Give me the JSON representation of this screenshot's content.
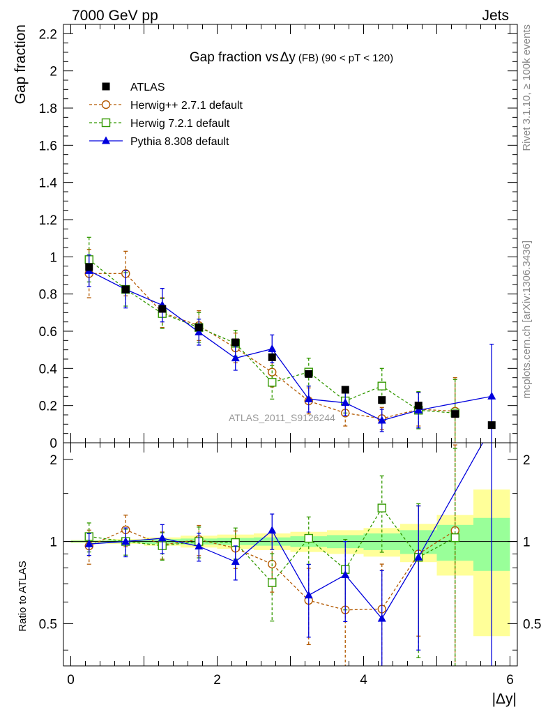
{
  "header": {
    "left": "7000 GeV pp",
    "right": "Jets"
  },
  "side_labels": {
    "rivet": "Rivet 3.1.10, ≥ 100k events",
    "mcplots": "mcplots.cern.ch [arXiv:1306.3436]"
  },
  "watermark": "ATLAS_2011_S9126244",
  "chart_data": {
    "type": "scatter",
    "title": {
      "main": "Gap fraction vs",
      "delta": "Δy",
      "fb": "(FB)",
      "range": "(90 < pT < 120)"
    },
    "xlabel": "|Δy|",
    "ylabel_top": "Gap fraction",
    "ylabel_bottom": "Ratio to ATLAS",
    "xlim": [
      -0.1,
      6.1
    ],
    "ylim_top": [
      0,
      2.25
    ],
    "ylim_bottom": [
      0.35,
      2.3
    ],
    "x_ticks": [
      "0",
      "2",
      "4",
      "6"
    ],
    "y_ticks_top": [
      "0",
      "0.2",
      "0.4",
      "0.6",
      "0.8",
      "1",
      "1.2",
      "1.4",
      "1.6",
      "1.8",
      "2",
      "2.2"
    ],
    "y_ticks_bottom": [
      "0.5",
      "1",
      "2"
    ],
    "legend": [
      {
        "label": "ATLAS",
        "color": "#000000",
        "marker": "square-filled"
      },
      {
        "label": "Herwig++ 2.7.1 default",
        "color": "#b35900",
        "marker": "circle-open"
      },
      {
        "label": "Herwig 7.2.1 default",
        "color": "#339900",
        "marker": "square-open"
      },
      {
        "label": "Pythia 8.308 default",
        "color": "#0000dd",
        "marker": "triangle-filled"
      }
    ],
    "x": [
      0.25,
      0.75,
      1.25,
      1.75,
      2.25,
      2.75,
      3.25,
      3.75,
      4.25,
      4.75,
      5.25,
      5.75
    ],
    "atlas": [
      0.945,
      0.825,
      0.72,
      0.62,
      0.54,
      0.46,
      0.37,
      0.285,
      0.23,
      0.2,
      0.155,
      0.095
    ],
    "bands": [
      {
        "x0": 0.0,
        "x1": 0.5,
        "stat": 0.008,
        "total": 0.012
      },
      {
        "x0": 0.5,
        "x1": 1.0,
        "stat": 0.012,
        "total": 0.02
      },
      {
        "x0": 1.0,
        "x1": 1.5,
        "stat": 0.02,
        "total": 0.035
      },
      {
        "x0": 1.5,
        "x1": 2.0,
        "stat": 0.025,
        "total": 0.05
      },
      {
        "x0": 2.0,
        "x1": 2.5,
        "stat": 0.03,
        "total": 0.06
      },
      {
        "x0": 2.5,
        "x1": 3.0,
        "stat": 0.035,
        "total": 0.07
      },
      {
        "x0": 3.0,
        "x1": 3.5,
        "stat": 0.045,
        "total": 0.085
      },
      {
        "x0": 3.5,
        "x1": 4.0,
        "stat": 0.055,
        "total": 0.1
      },
      {
        "x0": 4.0,
        "x1": 4.5,
        "stat": 0.07,
        "total": 0.12
      },
      {
        "x0": 4.5,
        "x1": 5.0,
        "stat": 0.1,
        "total": 0.16
      },
      {
        "x0": 5.0,
        "x1": 5.5,
        "stat": 0.15,
        "total": 0.25
      },
      {
        "x0": 5.5,
        "x1": 6.0,
        "stat": 0.22,
        "total": 0.55
      }
    ],
    "series": [
      {
        "name": "Herwig++ 2.7.1 default",
        "color": "#b35900",
        "dash": "4,3",
        "marker": "circle-open",
        "x": [
          0.25,
          0.75,
          1.25,
          1.75,
          2.25,
          2.75,
          3.25,
          3.75,
          4.25,
          4.75,
          5.25
        ],
        "values": [
          0.91,
          0.91,
          0.7,
          0.63,
          0.51,
          0.38,
          0.225,
          0.16,
          0.13,
          0.18,
          0.17
        ],
        "err": [
          0.13,
          0.12,
          0.08,
          0.08,
          0.08,
          0.08,
          0.07,
          0.07,
          0.06,
          0.09,
          0.18
        ]
      },
      {
        "name": "Herwig 7.2.1 default",
        "color": "#339900",
        "dash": "4,3",
        "marker": "square-open",
        "x": [
          0.25,
          0.75,
          1.25,
          1.75,
          2.25,
          2.75,
          3.25,
          3.75,
          4.25,
          4.75,
          5.25
        ],
        "values": [
          0.985,
          0.825,
          0.695,
          0.62,
          0.535,
          0.325,
          0.38,
          0.225,
          0.305,
          0.175,
          0.16
        ],
        "err": [
          0.12,
          0.09,
          0.08,
          0.08,
          0.07,
          0.09,
          0.075,
          0.065,
          0.095,
          0.1,
          0.18
        ]
      },
      {
        "name": "Pythia 8.308 default",
        "color": "#0000dd",
        "dash": "",
        "marker": "triangle-filled",
        "x": [
          0.25,
          0.75,
          1.25,
          1.75,
          2.25,
          2.75,
          3.25,
          3.75,
          4.25,
          4.75,
          5.75
        ],
        "values": [
          0.925,
          0.825,
          0.74,
          0.595,
          0.455,
          0.505,
          0.235,
          0.215,
          0.12,
          0.175,
          0.25
        ],
        "err": [
          0.085,
          0.1,
          0.09,
          0.07,
          0.065,
          0.075,
          0.07,
          0.07,
          0.06,
          0.095,
          0.28
        ]
      }
    ]
  }
}
